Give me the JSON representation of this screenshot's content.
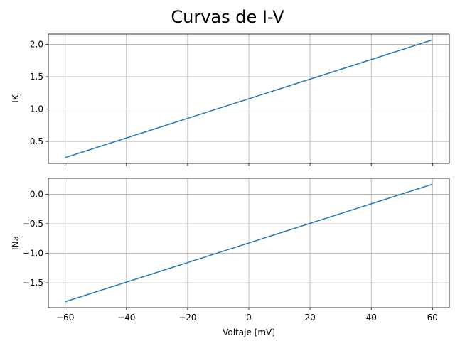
{
  "title": "Curvas de I-V",
  "chart_data": {
    "type": "line",
    "title": "Curvas de I-V",
    "xlabel": "Voltaje [mV]",
    "grid": true,
    "color": "#1f77b4",
    "x_ticks": [
      "−60",
      "−40",
      "−20",
      "0",
      "20",
      "40",
      "60"
    ],
    "x_tick_values": [
      -60,
      -40,
      -20,
      0,
      20,
      40,
      60
    ],
    "xlim": [
      -65.5,
      65.5
    ],
    "subplots": [
      {
        "ylabel": "IK",
        "ylim": [
          0.16,
          2.16
        ],
        "y_ticks": [
          "0.5",
          "1.0",
          "1.5",
          "2.0"
        ],
        "y_tick_values": [
          0.5,
          1.0,
          1.5,
          2.0
        ],
        "x": [
          -60,
          60
        ],
        "y": [
          0.25,
          2.07
        ]
      },
      {
        "ylabel": "INa",
        "ylim": [
          -1.92,
          0.27
        ],
        "y_ticks": [
          "−1.5",
          "−1.0",
          "−0.5",
          "0.0"
        ],
        "y_tick_values": [
          -1.5,
          -1.0,
          -0.5,
          0.0
        ],
        "x": [
          -60,
          60
        ],
        "y": [
          -1.82,
          0.17
        ]
      }
    ]
  }
}
